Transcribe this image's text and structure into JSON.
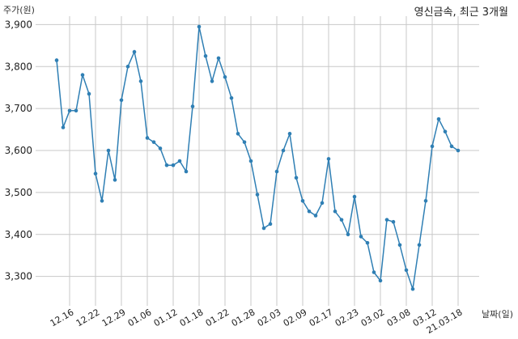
{
  "chart_data": {
    "type": "line",
    "title": "영신금속, 최근 3개월",
    "ylabel": "주가(원)",
    "xlabel": "날짜(일)",
    "ylim": [
      3230,
      3920
    ],
    "yticks": [
      3300,
      3400,
      3500,
      3600,
      3700,
      3800,
      3900
    ],
    "ytick_labels": [
      "3,300",
      "3,400",
      "3,500",
      "3,600",
      "3,700",
      "3,800",
      "3,900"
    ],
    "xtick_labels": [
      "12.16",
      "12.22",
      "12.29",
      "01.06",
      "01.12",
      "01.18",
      "01.22",
      "01.28",
      "02.03",
      "02.09",
      "02.17",
      "02.23",
      "03.02",
      "03.08",
      "03.12",
      "21.03.18"
    ],
    "xtick_index": [
      2,
      6,
      10,
      14,
      18,
      22,
      26,
      30,
      34,
      38,
      42,
      46,
      50,
      54,
      58,
      62
    ],
    "color": "#2f7fb4",
    "grid": true,
    "series": [
      {
        "values": [
          3815,
          3655,
          3695,
          3695,
          3780,
          3735,
          3545,
          3480,
          3600,
          3530,
          3720,
          3800,
          3835,
          3765,
          3630,
          3620,
          3605,
          3565,
          3565,
          3575,
          3550,
          3705,
          3895,
          3825,
          3765,
          3820,
          3775,
          3725,
          3640,
          3620,
          3575,
          3495,
          3415,
          3425,
          3550,
          3600,
          3640,
          3535,
          3480,
          3455,
          3445,
          3475,
          3580,
          3455,
          3435,
          3400,
          3490,
          3395,
          3380,
          3310,
          3290,
          3435,
          3430,
          3375,
          3315,
          3270,
          3375,
          3480,
          3610,
          3675,
          3645,
          3610,
          3600
        ]
      }
    ]
  }
}
